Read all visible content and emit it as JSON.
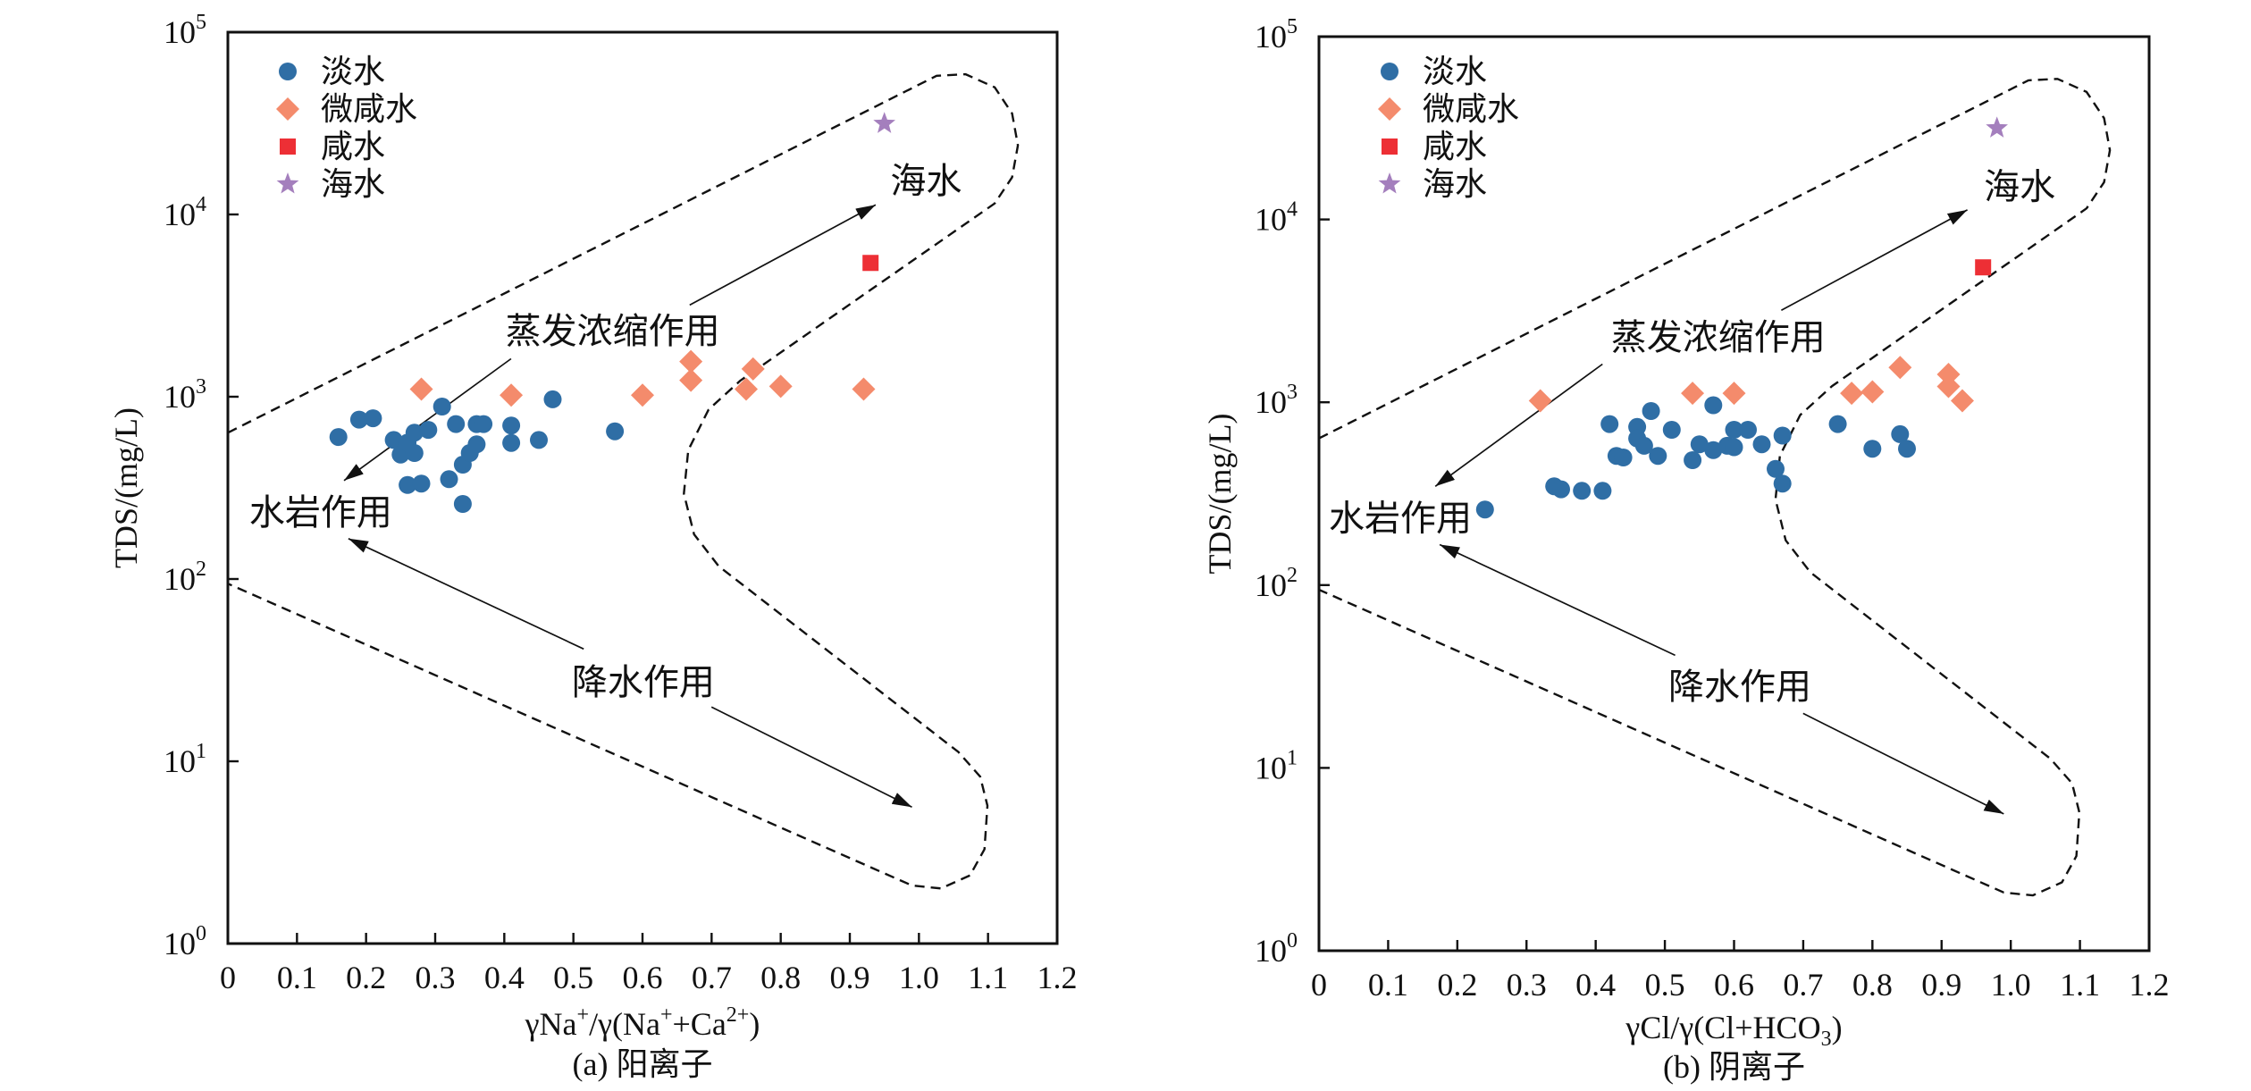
{
  "chart_data": [
    {
      "type": "scatter",
      "caption": "(a) 阳离子",
      "xlabel": [
        {
          "text": "γNa"
        },
        {
          "text": "+",
          "sup": true
        },
        {
          "text": "/γ(Na"
        },
        {
          "text": "+",
          "sup": true
        },
        {
          "text": "+Ca"
        },
        {
          "text": "2+",
          "sup": true
        },
        {
          "text": ")"
        }
      ],
      "ylabel": "TDS/(mg/L)",
      "xlim": [
        0,
        1.2
      ],
      "ylim": [
        1,
        100000
      ],
      "yscale": "log",
      "grid": false,
      "legend_position": "top-left",
      "xticks": [
        "0",
        "0.1",
        "0.2",
        "0.3",
        "0.4",
        "0.5",
        "0.6",
        "0.7",
        "0.8",
        "0.9",
        "1.0",
        "1.1",
        "1.2"
      ],
      "yticks": [
        {
          "base": "10",
          "exp": "0"
        },
        {
          "base": "10",
          "exp": "1"
        },
        {
          "base": "10",
          "exp": "2"
        },
        {
          "base": "10",
          "exp": "3"
        },
        {
          "base": "10",
          "exp": "4"
        },
        {
          "base": "10",
          "exp": "5"
        }
      ],
      "series": [
        {
          "name": "淡水",
          "marker": "circle",
          "color": "#2f6ea5",
          "points": [
            [
              0.16,
              601
            ],
            [
              0.19,
              749
            ],
            [
              0.21,
              762
            ],
            [
              0.24,
              579
            ],
            [
              0.25,
              482
            ],
            [
              0.26,
              560
            ],
            [
              0.27,
              635
            ],
            [
              0.27,
              491
            ],
            [
              0.26,
              328
            ],
            [
              0.28,
              334
            ],
            [
              0.29,
              658
            ],
            [
              0.31,
              883
            ],
            [
              0.32,
              353
            ],
            [
              0.33,
              708
            ],
            [
              0.34,
              424
            ],
            [
              0.35,
              491
            ],
            [
              0.36,
              708
            ],
            [
              0.37,
              708
            ],
            [
              0.36,
              548
            ],
            [
              0.41,
              695
            ],
            [
              0.41,
              558
            ],
            [
              0.45,
              579
            ],
            [
              0.47,
              968
            ],
            [
              0.34,
              258
            ],
            [
              0.56,
              646
            ]
          ]
        },
        {
          "name": "微咸水",
          "marker": "diamond",
          "color": "#f48b6c",
          "points": [
            [
              0.28,
              1100
            ],
            [
              0.41,
              1020
            ],
            [
              0.6,
              1020
            ],
            [
              0.67,
              1560
            ],
            [
              0.67,
              1230
            ],
            [
              0.76,
              1420
            ],
            [
              0.75,
              1100
            ],
            [
              0.8,
              1140
            ],
            [
              0.92,
              1100
            ]
          ]
        },
        {
          "name": "咸水",
          "marker": "square",
          "color": "#ed2f35",
          "points": [
            [
              0.93,
              5420
            ]
          ]
        },
        {
          "name": "海水",
          "marker": "star",
          "color": "#a47fbd",
          "points": [
            [
              0.95,
              31500
            ]
          ]
        }
      ],
      "annotations": [
        "海水",
        "蒸发浓缩作用",
        "水岩作用",
        "降水作用"
      ]
    },
    {
      "type": "scatter",
      "caption": "(b) 阴离子",
      "xlabel": [
        {
          "text": "γCl/γ(Cl+HCO"
        },
        {
          "text": "3",
          "sub": true
        },
        {
          "text": ")"
        }
      ],
      "ylabel": "TDS/(mg/L)",
      "xlim": [
        0,
        1.2
      ],
      "ylim": [
        1,
        100000
      ],
      "yscale": "log",
      "grid": false,
      "legend_position": "top-left",
      "xticks": [
        "0",
        "0.1",
        "0.2",
        "0.3",
        "0.4",
        "0.5",
        "0.6",
        "0.7",
        "0.8",
        "0.9",
        "1.0",
        "1.1",
        "1.2"
      ],
      "yticks": [
        {
          "base": "10",
          "exp": "0"
        },
        {
          "base": "10",
          "exp": "1"
        },
        {
          "base": "10",
          "exp": "2"
        },
        {
          "base": "10",
          "exp": "3"
        },
        {
          "base": "10",
          "exp": "4"
        },
        {
          "base": "10",
          "exp": "5"
        }
      ],
      "series": [
        {
          "name": "淡水",
          "marker": "circle",
          "color": "#2f6ea5",
          "points": [
            [
              0.24,
              259
            ],
            [
              0.34,
              347
            ],
            [
              0.35,
              334
            ],
            [
              0.38,
              328
            ],
            [
              0.41,
              328
            ],
            [
              0.42,
              760
            ],
            [
              0.43,
              509
            ],
            [
              0.44,
              499
            ],
            [
              0.46,
              733
            ],
            [
              0.46,
              634
            ],
            [
              0.47,
              578
            ],
            [
              0.48,
              896
            ],
            [
              0.49,
              509
            ],
            [
              0.51,
              707
            ],
            [
              0.54,
              482
            ],
            [
              0.55,
              589
            ],
            [
              0.57,
              964
            ],
            [
              0.57,
              547
            ],
            [
              0.59,
              578
            ],
            [
              0.6,
              707
            ],
            [
              0.6,
              568
            ],
            [
              0.62,
              707
            ],
            [
              0.64,
              589
            ],
            [
              0.66,
              432
            ],
            [
              0.67,
              657
            ],
            [
              0.67,
              359
            ],
            [
              0.75,
              760
            ],
            [
              0.8,
              557
            ],
            [
              0.84,
              669
            ],
            [
              0.85,
              557
            ]
          ]
        },
        {
          "name": "微咸水",
          "marker": "diamond",
          "color": "#f48b6c",
          "points": [
            [
              0.32,
              1020
            ],
            [
              0.54,
              1120
            ],
            [
              0.6,
              1120
            ],
            [
              0.77,
              1120
            ],
            [
              0.8,
              1140
            ],
            [
              0.84,
              1550
            ],
            [
              0.91,
              1420
            ],
            [
              0.91,
              1220
            ],
            [
              0.93,
              1020
            ]
          ]
        },
        {
          "name": "咸水",
          "marker": "square",
          "color": "#ed2f35",
          "points": [
            [
              0.96,
              5470
            ]
          ]
        },
        {
          "name": "海水",
          "marker": "star",
          "color": "#a47fbd",
          "points": [
            [
              0.98,
              31600
            ]
          ]
        }
      ],
      "annotations": [
        "海水",
        "蒸发浓缩作用",
        "水岩作用",
        "降水作用"
      ]
    }
  ]
}
